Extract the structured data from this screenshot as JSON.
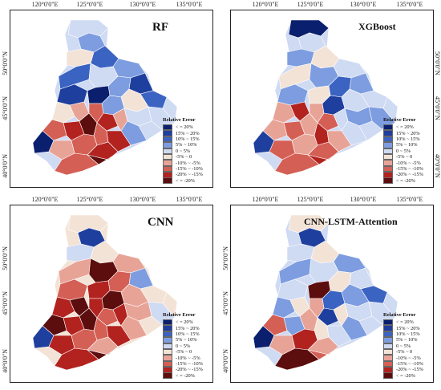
{
  "colors": {
    "lt_neg20": "#0a1f6e",
    "neg20_15": "#1f3f9e",
    "neg15_10": "#3a63c2",
    "neg10_5": "#7d9de0",
    "neg5_0": "#cfdaf3",
    "zero_pos5": "#f3e3d6",
    "pos5_10": "#e8a397",
    "pos10_15": "#d45f55",
    "pos15_20": "#b2231f",
    "gt_pos20": "#5c0d0d"
  },
  "legend": {
    "title": "Relative Error",
    "items": [
      {
        "label": "< = 20%",
        "color": "#0a1f6e"
      },
      {
        "label": "15% ~ 20%",
        "color": "#1f3f9e"
      },
      {
        "label": "10% ~ 15%",
        "color": "#3a63c2"
      },
      {
        "label": "5% ~ 10%",
        "color": "#7d9de0"
      },
      {
        "label": "0 ~ 5%",
        "color": "#cfdaf3"
      },
      {
        "label": "-5% ~ 0",
        "color": "#f3e3d6"
      },
      {
        "label": "-10% ~ -5%",
        "color": "#e8a397"
      },
      {
        "label": "-15% ~ -10%",
        "color": "#d45f55"
      },
      {
        "label": "-20% ~ -15%",
        "color": "#b2231f"
      },
      {
        "label": "< = -20%",
        "color": "#5c0d0d"
      }
    ]
  },
  "axes": {
    "lon_labels": [
      "120°0'0\"E",
      "125°0'0\"E",
      "130°0'0\"E",
      "135°0'0\"E"
    ],
    "lat_labels": [
      "50°0'0\"N",
      "45°0'0\"N",
      "40°0'0\"N"
    ]
  },
  "panels": [
    {
      "title": "RF"
    },
    {
      "title": "XGBoost"
    },
    {
      "title": "CNN"
    },
    {
      "title": "CNN-LSTM-Attention"
    }
  ]
}
